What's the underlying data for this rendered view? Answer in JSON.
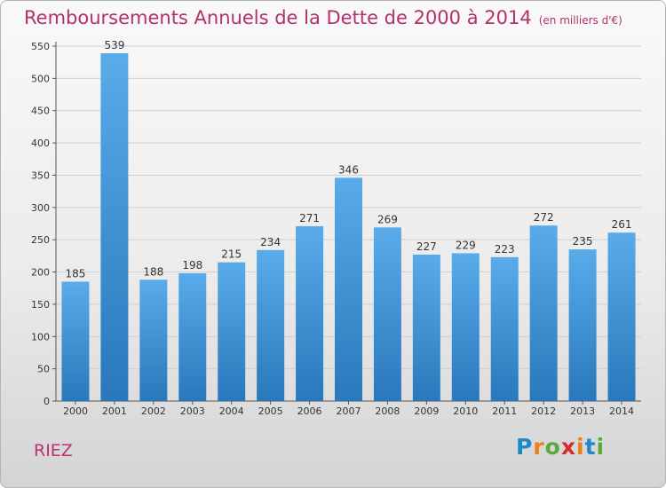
{
  "header": {
    "title": "Remboursements Annuels de la Dette de 2000 à 2014",
    "unit": "(en milliers d'€)"
  },
  "footer": {
    "city": "RIEZ",
    "logo_letters": [
      "P",
      "r",
      "o",
      "x",
      "i",
      "t",
      "i"
    ]
  },
  "colors": {
    "title": "#b4306c",
    "bar_top": "#5aabea",
    "bar_bottom": "#2878bb"
  },
  "chart_data": {
    "type": "bar",
    "title": "Remboursements Annuels de la Dette de 2000 à 2014",
    "subtitle": "(en milliers d'€)",
    "categories": [
      "2000",
      "2001",
      "2002",
      "2003",
      "2004",
      "2005",
      "2006",
      "2007",
      "2008",
      "2009",
      "2010",
      "2011",
      "2012",
      "2013",
      "2014"
    ],
    "values": [
      185,
      539,
      188,
      198,
      215,
      234,
      271,
      346,
      269,
      227,
      229,
      223,
      272,
      235,
      261
    ],
    "ylim": [
      0,
      550
    ],
    "yticks": [
      0,
      50,
      100,
      150,
      200,
      250,
      300,
      350,
      400,
      450,
      500,
      550
    ],
    "grid": true,
    "data_labels": true
  }
}
